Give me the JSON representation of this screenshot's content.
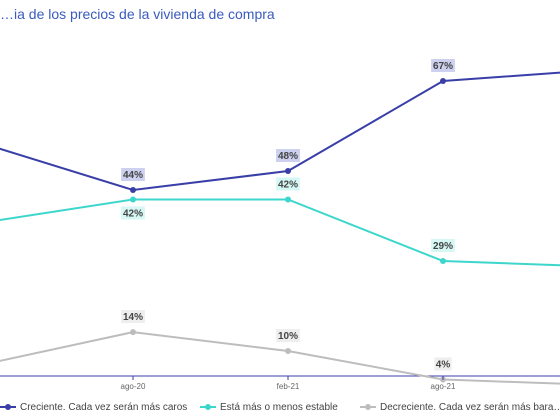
{
  "title": "…ia de los precios de la vivienda de compra",
  "chart_data": {
    "type": "line",
    "categories": [
      "",
      "ago-20",
      "feb-21",
      "ago-21",
      ""
    ],
    "ylim": [
      0,
      80
    ],
    "legend_position": "bottom",
    "grid": false,
    "series": [
      {
        "name": "Creciente. Cada vez serán más caros",
        "color": "#3a3fa8",
        "label_bg": "#cdd0ee",
        "values": [
          54,
          44,
          48,
          67,
          69
        ],
        "labels": [
          "",
          "44%",
          "48%",
          "67%",
          ""
        ],
        "label_pos": [
          "",
          "above",
          "above",
          "above",
          ""
        ]
      },
      {
        "name": "Está más o menos estable",
        "color": "#3dd6cc",
        "label_bg": "#d6f7f4",
        "values": [
          37,
          42,
          42,
          29,
          28
        ],
        "labels": [
          "",
          "42%",
          "42%",
          "29%",
          ""
        ],
        "label_pos": [
          "",
          "below",
          "above",
          "above",
          ""
        ]
      },
      {
        "name": "Decreciente. Cada vez serán más bara…",
        "color": "#bdbdbd",
        "label_bg": "#eeeeee",
        "values": [
          7,
          14,
          10,
          4,
          3
        ],
        "labels": [
          "",
          "14%",
          "10%",
          "4%",
          ""
        ],
        "label_pos": [
          "",
          "above",
          "above",
          "above",
          ""
        ]
      }
    ]
  }
}
